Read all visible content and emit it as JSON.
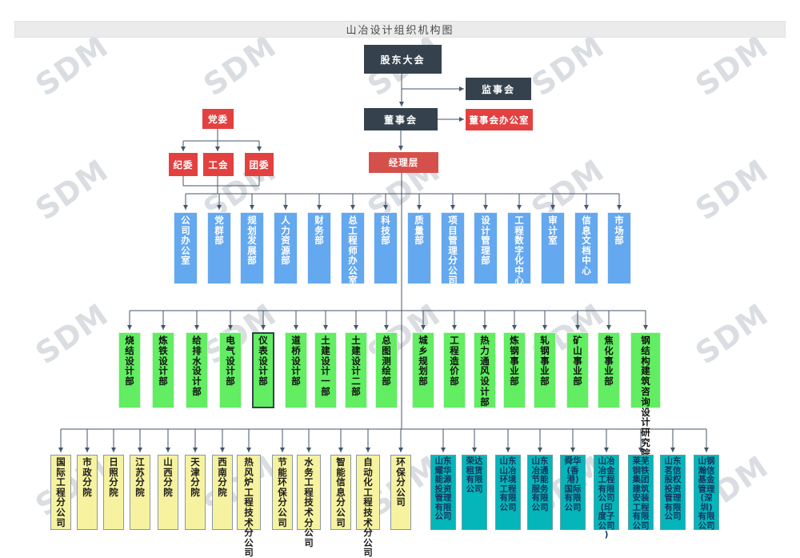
{
  "title": "山冶设计组织机构图",
  "watermark": {
    "text": "SDM"
  },
  "governance": {
    "shareholders": "股东大会",
    "supervisory_board": "监事会",
    "board": "董事会",
    "board_office": "董事会办公室",
    "management": "经理层",
    "party_committee": "党委",
    "party_orgs": [
      "纪委",
      "工会",
      "团委"
    ]
  },
  "functional_departments": [
    "公司办公室",
    "党群部",
    "规划发展部",
    "人力资源部",
    "财务部",
    "总工程师办公室",
    "科技部",
    "质量部",
    "项目管理分公司",
    "设计管理部",
    "工程数字化中心",
    "审计室",
    "信息文档中心",
    "市场部"
  ],
  "design_departments": [
    "烧结设计部",
    "炼铁设计部",
    "给排水设计部",
    "电气设计部",
    "仪表设计部",
    "道桥设计部",
    "土建设计一部",
    "土建设计二部",
    "总图测绘部",
    "城乡规划部",
    "工程造价部",
    "热力通风设计部",
    "炼钢事业部",
    "轧钢事业部",
    "矿山事业部",
    "焦化事业部",
    "钢结构建筑咨询设计研究院"
  ],
  "selected_department": "仪表设计部",
  "branch_companies": [
    "国际工程分公司",
    "市政分院",
    "日照分院",
    "江苏分院",
    "山西分院",
    "天津分院",
    "西南分院",
    "热风炉工程技术分公司",
    "节能环保分公司",
    "水务工程技术分公司",
    "智能信息分公司",
    "自动化工程技术分公司",
    "环保分公司"
  ],
  "subsidiaries": [
    "山东耀华能源投资管理有限公司",
    "荣达租赁有限公司",
    "山东山冶环境工程有限公司",
    "山东冶通节能服务有限公司",
    "舜华(香港)国际有限公司",
    "山冶冶金工程有限公司(印度子公司)",
    "莱芜钢铁集团建筑安装工程有限公司",
    "山东茗信股权投资管理有限公司",
    "山钢瀚信基金管理(深圳)有限公司"
  ],
  "colors": {
    "governance_dark": "#35424e",
    "governance_red": "#e34040",
    "management_red": "#d6504b",
    "functional_blue": "#64a8ef",
    "design_green": "#62ed62",
    "branch_yellow": "#f6f2a0",
    "subsidiary_teal": "#04b6ba",
    "connector": "#44566b",
    "title_bg": "#ebebeb"
  }
}
